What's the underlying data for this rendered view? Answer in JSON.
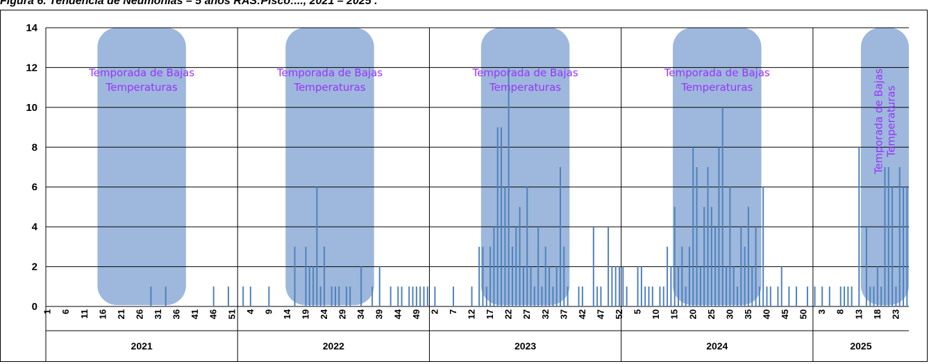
{
  "title": "Figura 6. Tendencia de Neumonías – 5 años RAS:Pisco:..., 2021 – 2025 .",
  "colors": {
    "bar": "#4f81bd",
    "band": "#9db8dc",
    "band_text": "#9b30ff",
    "grid": "#000000"
  },
  "chart_data": {
    "type": "bar",
    "title": "Figura 6. Tendencia de Neumonías – 5 años RAS:Pisco:..., 2021 – 2025 .",
    "xlabel": "",
    "ylabel": "",
    "ylim": [
      0,
      14
    ],
    "yticks": [
      0,
      2,
      4,
      6,
      8,
      10,
      12,
      14
    ],
    "grid": true,
    "legend": "none",
    "years": [
      {
        "label": "2021",
        "weeks": 52,
        "tick_labels": [
          "1",
          "6",
          "11",
          "16",
          "21",
          "26",
          "31",
          "36",
          "41",
          "46",
          "51"
        ],
        "band": [
          15,
          38
        ],
        "values": {
          "29": 1,
          "33": 1,
          "46": 1,
          "50": 1
        }
      },
      {
        "label": "2022",
        "weeks": 52,
        "tick_labels": [
          "4",
          "9",
          "14",
          "19",
          "24",
          "29",
          "34",
          "39",
          "44",
          "49"
        ],
        "band": [
          14,
          37
        ],
        "values": {
          "2": 1,
          "4": 1,
          "9": 1,
          "16": 3,
          "19": 3,
          "20": 2,
          "21": 2,
          "22": 6,
          "23": 1,
          "24": 3,
          "26": 1,
          "27": 1,
          "28": 1,
          "30": 1,
          "31": 1,
          "34": 2,
          "37": 1,
          "39": 2,
          "42": 1,
          "44": 1,
          "45": 1,
          "47": 1,
          "48": 1,
          "49": 1,
          "50": 1,
          "51": 1,
          "52": 1
        }
      },
      {
        "label": "2023",
        "weeks": 52,
        "tick_labels": [
          "2",
          "7",
          "12",
          "17",
          "22",
          "27",
          "32",
          "37",
          "42",
          "47",
          "52"
        ],
        "band": [
          15,
          38
        ],
        "values": {
          "2": 1,
          "7": 1,
          "12": 1,
          "14": 3,
          "15": 3,
          "16": 1,
          "17": 3,
          "18": 4,
          "19": 9,
          "20": 9,
          "21": 6,
          "22": 12,
          "23": 3,
          "24": 4,
          "25": 5,
          "26": 2,
          "27": 6,
          "28": 2,
          "29": 1,
          "30": 4,
          "31": 1,
          "32": 3,
          "33": 2,
          "34": 1,
          "35": 2,
          "36": 7,
          "37": 3,
          "38": 1,
          "41": 1,
          "42": 1,
          "45": 4,
          "46": 1,
          "47": 1,
          "49": 4,
          "50": 2,
          "51": 2,
          "52": 2
        }
      },
      {
        "label": "2024",
        "weeks": 52,
        "tick_labels": [
          "5",
          "10",
          "15",
          "20",
          "25",
          "30",
          "35",
          "40",
          "45",
          "50"
        ],
        "band": [
          15,
          38
        ],
        "values": {
          "1": 2,
          "2": 1,
          "5": 2,
          "6": 2,
          "7": 1,
          "8": 1,
          "9": 1,
          "11": 1,
          "12": 1,
          "13": 3,
          "14": 2,
          "15": 5,
          "16": 2,
          "17": 3,
          "18": 1,
          "19": 3,
          "20": 8,
          "21": 7,
          "22": 2,
          "23": 5,
          "24": 7,
          "25": 5,
          "26": 4,
          "27": 8,
          "28": 10,
          "29": 2,
          "30": 6,
          "31": 2,
          "32": 1,
          "33": 4,
          "34": 3,
          "35": 5,
          "36": 2,
          "37": 4,
          "38": 1,
          "39": 6,
          "40": 1,
          "41": 1,
          "43": 1,
          "44": 2,
          "46": 1,
          "48": 1,
          "51": 1
        }
      },
      {
        "label": "2025",
        "weeks": 26,
        "tick_labels": [
          "3",
          "8",
          "13",
          "18",
          "23"
        ],
        "band": [
          14,
          26
        ],
        "values": {
          "1": 1,
          "3": 1,
          "5": 1,
          "8": 1,
          "9": 1,
          "10": 1,
          "11": 1,
          "13": 8,
          "15": 4,
          "16": 1,
          "17": 1,
          "18": 2,
          "19": 1,
          "20": 7,
          "21": 7,
          "22": 6,
          "23": 1,
          "24": 7,
          "25": 6,
          "26": 6
        }
      }
    ],
    "annotations": [
      "Temporada de Bajas Temperaturas"
    ]
  }
}
